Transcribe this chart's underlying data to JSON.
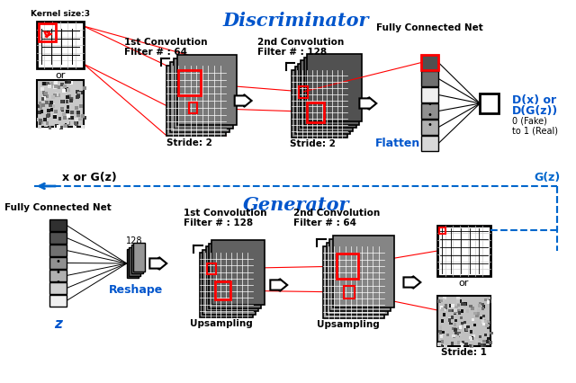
{
  "title_discriminator": "Discriminator",
  "title_generator": "Generator",
  "bg_color": "#ffffff",
  "disc_label1a": "1st Convolution",
  "disc_label1b": "Filter # : 64",
  "disc_label2a": "2nd Convolution",
  "disc_label2b": "Filter # : 128",
  "disc_fc_label": "Fully Connected Net",
  "disc_flatten": "Flatten",
  "disc_output1": "D(x) or",
  "disc_output2": "D(G(z))",
  "disc_output_sub": "0 (Fake)\nto 1 (Real)",
  "disc_stride1": "Stride: 2",
  "disc_stride2": "Stride: 2",
  "disc_kernel": "Kernel size:3",
  "gen_label1a": "1st Convolution",
  "gen_label1b": "Filter # : 128",
  "gen_label2a": "2nd Convolution",
  "gen_label2b": "Filter # : 64",
  "gen_fc_label": "Fully Connected Net",
  "gen_reshape": "Reshape",
  "gen_up1": "Upsampling",
  "gen_up2": "Upsampling",
  "gen_stride": "Stride: 1",
  "gen_128": "128",
  "feedback_label": "x or G(z)",
  "gz_label": "G(z)",
  "z_label": "z",
  "or_text": "or"
}
